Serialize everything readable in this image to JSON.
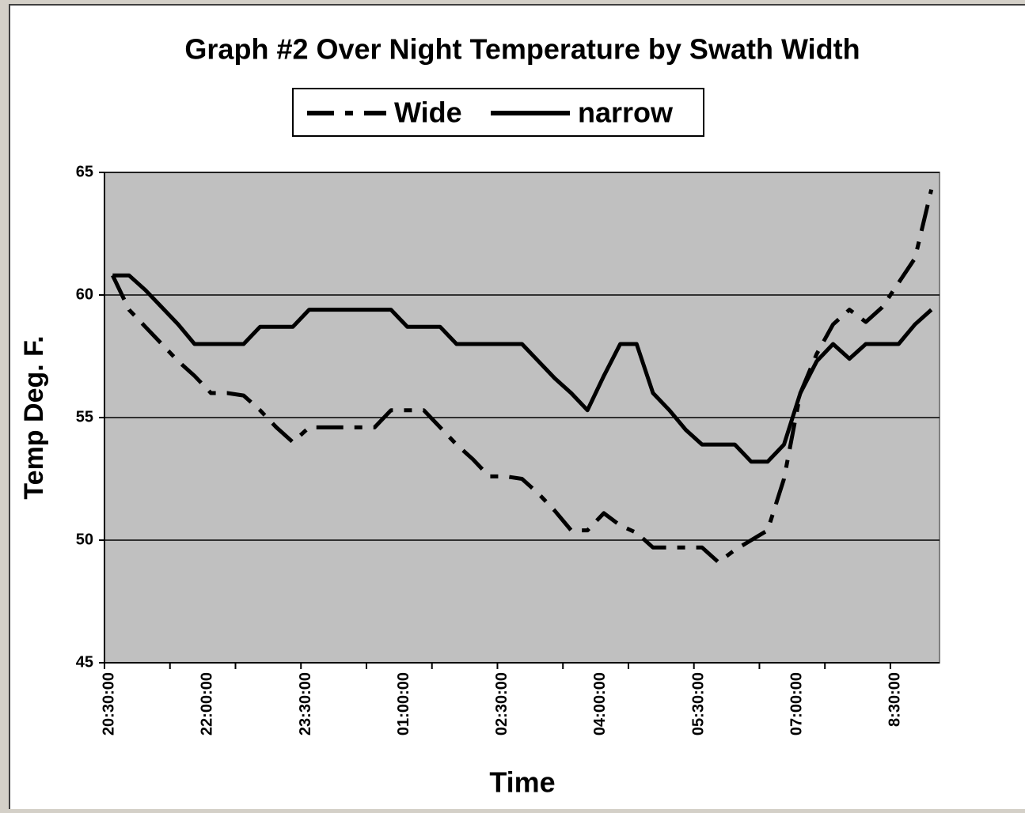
{
  "chart_data": {
    "type": "line",
    "title": "Graph #2  Over Night Temperature by Swath Width",
    "x_label": "Time",
    "y_label": "Temp Deg. F.",
    "categories": [
      "20:30:00",
      null,
      null,
      null,
      null,
      null,
      "22:00:00",
      null,
      null,
      null,
      null,
      null,
      "23:30:00",
      null,
      null,
      null,
      null,
      null,
      "01:00:00",
      null,
      null,
      null,
      null,
      null,
      "02:30:00",
      null,
      null,
      null,
      null,
      null,
      "04:00:00",
      null,
      null,
      null,
      null,
      null,
      "05:30:00",
      null,
      null,
      null,
      null,
      null,
      "07:00:00",
      null,
      null,
      null,
      null,
      null,
      "8:30:00",
      null,
      null
    ],
    "series": [
      {
        "name": "Wide",
        "color": "#000000",
        "dash": "dash-dot",
        "values": [
          60.8,
          59.4,
          58.7,
          58.0,
          57.3,
          56.7,
          56.0,
          56.0,
          55.9,
          55.3,
          54.6,
          54.0,
          54.6,
          54.6,
          54.6,
          54.6,
          54.6,
          55.3,
          55.3,
          55.3,
          54.6,
          53.9,
          53.3,
          52.6,
          52.6,
          52.5,
          51.9,
          51.2,
          50.4,
          50.4,
          51.1,
          50.6,
          50.3,
          49.7,
          49.7,
          49.7,
          49.7,
          49.1,
          49.6,
          50.0,
          50.4,
          52.5,
          56.0,
          57.6,
          58.8,
          59.4,
          58.9,
          59.5,
          60.5,
          61.5,
          64.3
        ]
      },
      {
        "name": "narrow",
        "color": "#000000",
        "dash": "solid",
        "values": [
          60.8,
          60.8,
          60.2,
          59.5,
          58.8,
          58.0,
          58.0,
          58.0,
          58.0,
          58.7,
          58.7,
          58.7,
          59.4,
          59.4,
          59.4,
          59.4,
          59.4,
          59.4,
          58.7,
          58.7,
          58.7,
          58.0,
          58.0,
          58.0,
          58.0,
          58.0,
          57.3,
          56.6,
          56.0,
          55.3,
          56.7,
          58.0,
          58.0,
          56.0,
          55.3,
          54.5,
          53.9,
          53.9,
          53.9,
          53.2,
          53.2,
          53.9,
          56.0,
          57.3,
          58.0,
          57.4,
          58.0,
          58.0,
          58.0,
          58.8,
          59.4
        ]
      }
    ],
    "ylim": [
      45,
      65
    ],
    "yticks": [
      45,
      50,
      55,
      60,
      65
    ],
    "grid": true,
    "legend": "top",
    "plot_color": "#c0c0c0"
  }
}
